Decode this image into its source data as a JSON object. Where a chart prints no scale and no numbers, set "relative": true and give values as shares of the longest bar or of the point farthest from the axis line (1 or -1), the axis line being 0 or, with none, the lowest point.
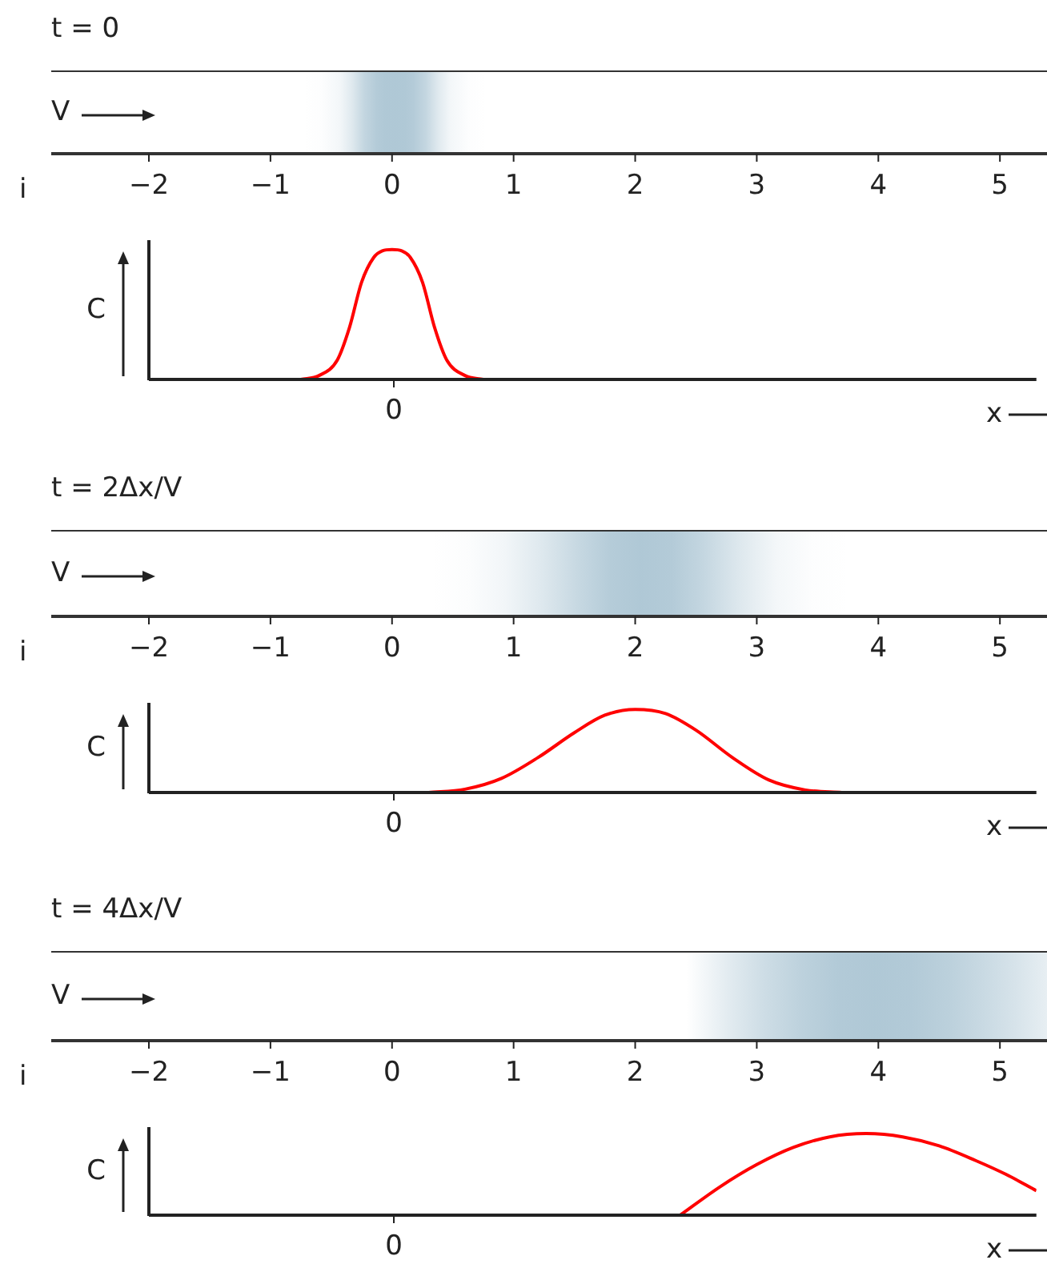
{
  "chart_data": [
    {
      "type": "line",
      "title": "t = 0",
      "xlabel": "i",
      "ylabel": "C",
      "annotations": [
        "V",
        "0",
        "x"
      ],
      "relative": true,
      "xlim": [
        -2,
        5.3
      ],
      "xticks": [
        -2,
        -1,
        0,
        1,
        2,
        3,
        4,
        5
      ],
      "series": [
        {
          "color": "#ff0000",
          "x": [
            -0.75,
            -0.6,
            -0.45,
            -0.35,
            -0.25,
            -0.15,
            -0.08,
            0,
            0.08,
            0.15,
            0.25,
            0.35,
            0.45,
            0.6,
            0.75
          ],
          "values": [
            0,
            0.03,
            0.15,
            0.4,
            0.75,
            0.94,
            0.99,
            1,
            0.99,
            0.94,
            0.75,
            0.4,
            0.15,
            0.03,
            0
          ]
        }
      ]
    },
    {
      "type": "line",
      "title": "t = 2Δx/V",
      "xlabel": "i",
      "ylabel": "C",
      "annotations": [
        "V",
        "0",
        "x"
      ],
      "relative": true,
      "xlim": [
        -2,
        5.3
      ],
      "xticks": [
        -2,
        -1,
        0,
        1,
        2,
        3,
        4,
        5
      ],
      "series": [
        {
          "color": "#ff0000",
          "x": [
            0.3,
            0.6,
            0.9,
            1.2,
            1.5,
            1.75,
            2,
            2.25,
            2.5,
            2.8,
            3.1,
            3.4,
            3.7
          ],
          "values": [
            0,
            0.04,
            0.17,
            0.42,
            0.72,
            0.93,
            1,
            0.95,
            0.75,
            0.42,
            0.15,
            0.03,
            0
          ]
        }
      ]
    },
    {
      "type": "line",
      "title": "t = 4Δx/V",
      "xlabel": "i",
      "ylabel": "C",
      "annotations": [
        "V",
        "0",
        "x"
      ],
      "relative": true,
      "xlim": [
        -2,
        5.3
      ],
      "xticks": [
        -2,
        -1,
        0,
        1,
        2,
        3,
        4,
        5
      ],
      "series": [
        {
          "color": "#ff0000",
          "x": [
            2.37,
            2.7,
            3.0,
            3.3,
            3.6,
            3.9,
            4.2,
            4.5,
            4.8,
            5.05,
            5.3
          ],
          "values": [
            0,
            0.35,
            0.62,
            0.83,
            0.96,
            1,
            0.96,
            0.85,
            0.67,
            0.5,
            0.3
          ]
        }
      ]
    }
  ]
}
